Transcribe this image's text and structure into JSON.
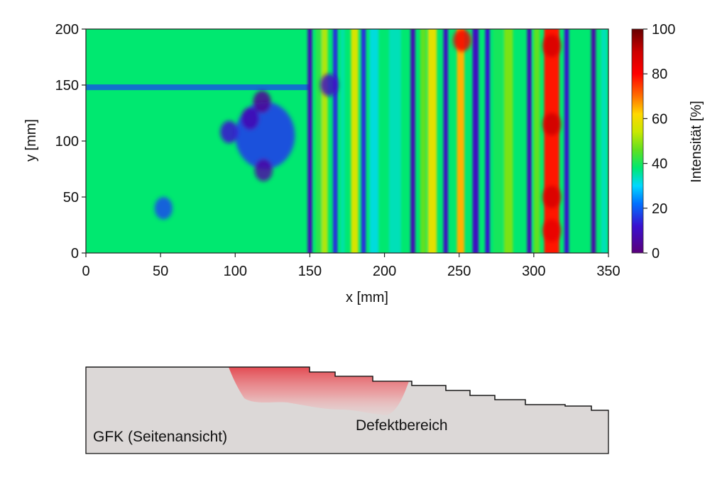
{
  "chart_data": {
    "type": "heatmap",
    "xlabel": "x [mm]",
    "ylabel": "y [mm]",
    "colorbar_label": "Intensität [%]",
    "xlim": [
      0,
      350
    ],
    "ylim": [
      0,
      200
    ],
    "clim": [
      0,
      100
    ],
    "x_ticks": [
      "0",
      "50",
      "100",
      "150",
      "200",
      "250",
      "300",
      "350"
    ],
    "y_ticks": [
      "0",
      "50",
      "100",
      "150",
      "200"
    ],
    "colorbar_ticks": [
      "0",
      "20",
      "40",
      "60",
      "80",
      "100"
    ],
    "background_level": 38,
    "stripe_columns": [
      {
        "x": 150,
        "width": 3,
        "value": 8
      },
      {
        "x": 156,
        "width": 4,
        "value": 42
      },
      {
        "x": 160,
        "width": 4,
        "value": 52
      },
      {
        "x": 167,
        "width": 3,
        "value": 15
      },
      {
        "x": 172,
        "width": 3,
        "value": 35
      },
      {
        "x": 180,
        "width": 5,
        "value": 56
      },
      {
        "x": 186,
        "width": 3,
        "value": 15
      },
      {
        "x": 193,
        "width": 6,
        "value": 32
      },
      {
        "x": 207,
        "width": 8,
        "value": 34
      },
      {
        "x": 219,
        "width": 3,
        "value": 8
      },
      {
        "x": 226,
        "width": 4,
        "value": 46
      },
      {
        "x": 232,
        "width": 6,
        "value": 58
      },
      {
        "x": 241,
        "width": 3,
        "value": 10
      },
      {
        "x": 251,
        "width": 5,
        "value": 65
      },
      {
        "x": 261,
        "width": 4,
        "value": 10
      },
      {
        "x": 269,
        "width": 3,
        "value": 12
      },
      {
        "x": 276,
        "width": 6,
        "value": 40
      },
      {
        "x": 283,
        "width": 6,
        "value": 48
      },
      {
        "x": 297,
        "width": 3,
        "value": 8
      },
      {
        "x": 302,
        "width": 4,
        "value": 46
      },
      {
        "x": 312,
        "width": 10,
        "value": 78
      },
      {
        "x": 322,
        "width": 3,
        "value": 12
      },
      {
        "x": 329,
        "width": 5,
        "value": 38
      },
      {
        "x": 340,
        "width": 3,
        "value": 6
      },
      {
        "x": 347,
        "width": 4,
        "value": 34
      }
    ],
    "defect_region": {
      "x": 120,
      "y": 105,
      "level": 5
    },
    "horizontal_band": {
      "y": 148,
      "x_range": [
        0,
        150
      ],
      "level": 18
    },
    "blobs": [
      {
        "x": 110,
        "y": 120,
        "level": 8
      },
      {
        "x": 118,
        "y": 135,
        "level": 4
      },
      {
        "x": 119,
        "y": 74,
        "level": 6
      },
      {
        "x": 96,
        "y": 108,
        "level": 12
      },
      {
        "x": 163,
        "y": 150,
        "level": 10
      },
      {
        "x": 52,
        "y": 40,
        "level": 18
      },
      {
        "x": 252,
        "y": 190,
        "level": 82
      },
      {
        "x": 312,
        "y": 185,
        "level": 88
      },
      {
        "x": 312,
        "y": 115,
        "level": 90
      },
      {
        "x": 312,
        "y": 50,
        "level": 88
      },
      {
        "x": 312,
        "y": 20,
        "level": 85
      }
    ]
  },
  "diagram": {
    "material_label": "GFK (Seitenansicht)",
    "defect_label": "Defektbereich",
    "body_fill": "#dcd8d7",
    "defect_color": "#e3444c"
  },
  "colors": {
    "colormap": [
      "#5a007a",
      "#3a10d0",
      "#0060ff",
      "#00d8ff",
      "#00e870",
      "#50e020",
      "#c8e800",
      "#ffd800",
      "#ff7000",
      "#ff0000",
      "#cc0000",
      "#660000"
    ]
  }
}
